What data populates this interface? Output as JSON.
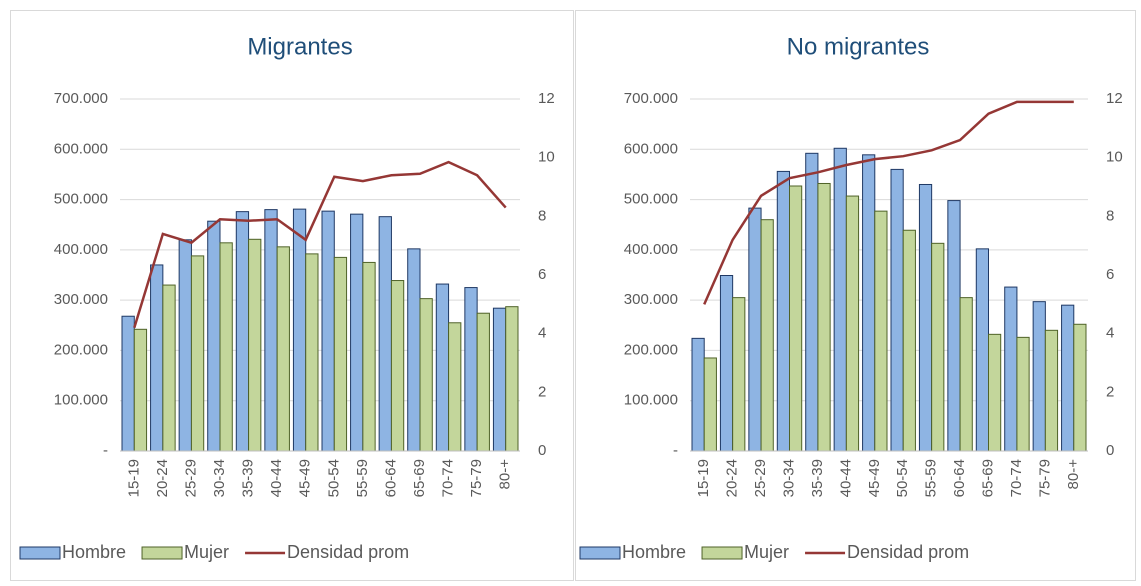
{
  "chart_data": [
    {
      "type": "bar",
      "title": "Migrantes",
      "categories": [
        "15-19",
        "20-24",
        "25-29",
        "30-34",
        "35-39",
        "40-44",
        "45-49",
        "50-54",
        "55-59",
        "60-64",
        "65-69",
        "70-74",
        "75-79",
        "80-+"
      ],
      "series": [
        {
          "name": "Hombre",
          "color": "#8eb4e3",
          "values": [
            268000,
            370000,
            420000,
            457000,
            476000,
            480000,
            481000,
            477000,
            471000,
            466000,
            402000,
            332000,
            325000,
            284000
          ]
        },
        {
          "name": "Mujer",
          "color": "#c3d69b",
          "values": [
            242000,
            330000,
            388000,
            414000,
            421000,
            406000,
            392000,
            385000,
            375000,
            339000,
            303000,
            255000,
            274000,
            287000
          ]
        },
        {
          "name": "Densidad prom",
          "color": "#953735",
          "axis": "y2",
          "values": [
            4.2,
            7.4,
            7.1,
            7.9,
            7.85,
            7.9,
            7.2,
            9.35,
            9.2,
            9.4,
            9.45,
            9.85,
            9.4,
            8.3
          ]
        }
      ],
      "ylim": [
        0,
        700000
      ],
      "yticks": [
        {
          "value": 0,
          "label": "-"
        },
        {
          "value": 100000,
          "label": "100.000"
        },
        {
          "value": 200000,
          "label": "200.000"
        },
        {
          "value": 300000,
          "label": "300.000"
        },
        {
          "value": 400000,
          "label": "400.000"
        },
        {
          "value": 500000,
          "label": "500.000"
        },
        {
          "value": 600000,
          "label": "600.000"
        },
        {
          "value": 700000,
          "label": "700.000"
        }
      ],
      "y2lim": [
        0,
        12
      ],
      "y2ticks": [
        0,
        2,
        4,
        6,
        8,
        10,
        12
      ],
      "grid": true,
      "legend": "bottom"
    },
    {
      "type": "bar",
      "title": "No migrantes",
      "categories": [
        "15-19",
        "20-24",
        "25-29",
        "30-34",
        "35-39",
        "40-44",
        "45-49",
        "50-54",
        "55-59",
        "60-64",
        "65-69",
        "70-74",
        "75-79",
        "80-+"
      ],
      "series": [
        {
          "name": "Hombre",
          "color": "#8eb4e3",
          "values": [
            224000,
            349000,
            483000,
            556000,
            592000,
            602000,
            589000,
            560000,
            530000,
            498000,
            402000,
            326000,
            297000,
            290000
          ]
        },
        {
          "name": "Mujer",
          "color": "#c3d69b",
          "values": [
            185000,
            305000,
            460000,
            527000,
            532000,
            507000,
            477000,
            439000,
            413000,
            305000,
            232000,
            226000,
            240000,
            252000
          ]
        },
        {
          "name": "Densidad prom",
          "color": "#953735",
          "axis": "y2",
          "values": [
            5.0,
            7.2,
            8.7,
            9.3,
            9.5,
            9.75,
            9.95,
            10.05,
            10.25,
            10.6,
            11.5,
            11.9,
            11.9,
            11.9
          ]
        }
      ],
      "ylim": [
        0,
        700000
      ],
      "yticks": [
        {
          "value": 0,
          "label": "-"
        },
        {
          "value": 100000,
          "label": "100.000"
        },
        {
          "value": 200000,
          "label": "200.000"
        },
        {
          "value": 300000,
          "label": "300.000"
        },
        {
          "value": 400000,
          "label": "400.000"
        },
        {
          "value": 500000,
          "label": "500.000"
        },
        {
          "value": 600000,
          "label": "600.000"
        },
        {
          "value": 700000,
          "label": "700.000"
        }
      ],
      "y2lim": [
        0,
        12
      ],
      "y2ticks": [
        0,
        2,
        4,
        6,
        8,
        10,
        12
      ],
      "grid": true,
      "legend": "bottom"
    }
  ]
}
